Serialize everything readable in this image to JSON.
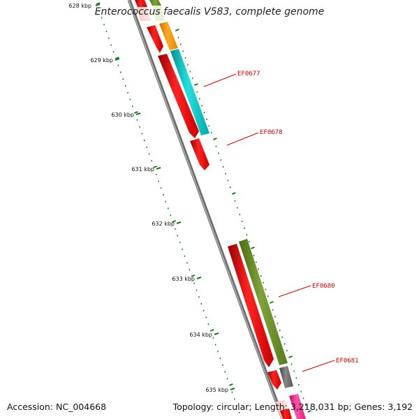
{
  "title": "Enterococcus faecalis V583, complete genome",
  "footer": {
    "accession": "Accession: NC_004668",
    "stats": "Topology: circular; Length: 3,218,031 bp; Genes: 3,192"
  },
  "ruler": [
    {
      "label": "628 kbp"
    },
    {
      "label": "629 kbp"
    },
    {
      "label": "630 kbp"
    },
    {
      "label": "631 kbp"
    },
    {
      "label": "632 kbp"
    },
    {
      "label": "633 kbp"
    },
    {
      "label": "634 kbp"
    },
    {
      "label": "635 kbp"
    }
  ],
  "gene_labels": [
    {
      "label": "EF0677"
    },
    {
      "label": "EF0678"
    },
    {
      "label": "EF0680"
    },
    {
      "label": "EF0681"
    }
  ],
  "colors": {
    "backbone": "#888888",
    "tick": "#1a7a1a",
    "label": "#cc0000",
    "red": "#ff0000",
    "cyan": "#00cccc",
    "olive": "#6b8e23",
    "orange": "#ff9900",
    "gray": "#666666",
    "pink": "#ff3399"
  }
}
